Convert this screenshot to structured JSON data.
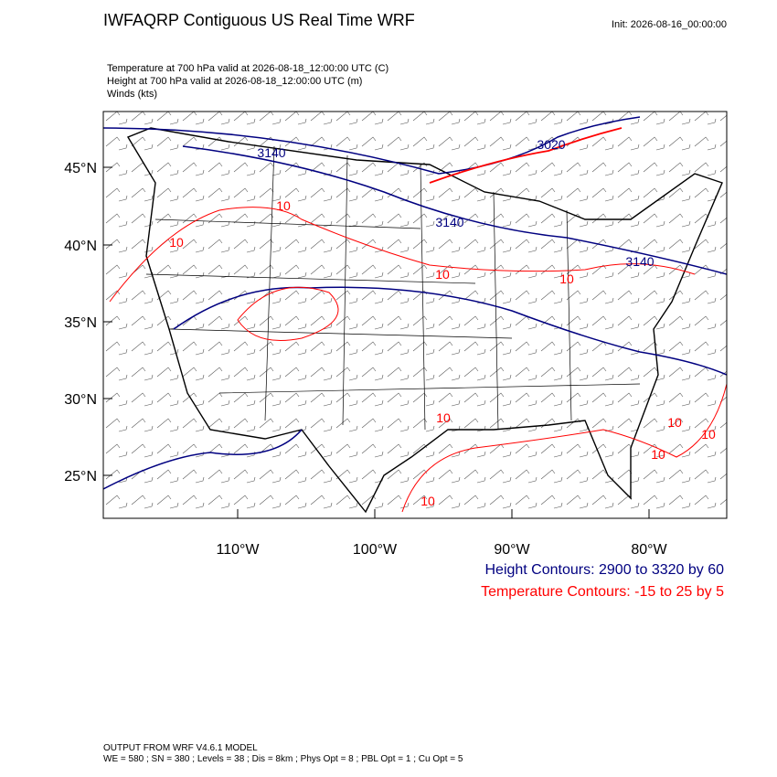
{
  "header": {
    "title": "IWFAQRP Contiguous US Real Time WRF",
    "init": "Init: 2026-08-16_00:00:00"
  },
  "fields": [
    "Temperature at 700 hPa valid at 2026-08-18_12:00:00 UTC   (C)",
    "Height at 700 hPa valid at 2026-08-18_12:00:00 UTC   (m)",
    "Winds   (kts)"
  ],
  "map": {
    "lat_labels": [
      "45°N",
      "40°N",
      "35°N",
      "30°N",
      "25°N"
    ],
    "lon_labels": [
      "110°W",
      "100°W",
      "90°W",
      "80°W"
    ],
    "height_labels": [
      "3140",
      "3140",
      "3140",
      "3020"
    ],
    "temp_labels": [
      "10",
      "10",
      "10",
      "10",
      "10",
      "10",
      "10",
      "10",
      "10"
    ]
  },
  "legend": {
    "height": "Height Contours: 2900 to 3320 by 60",
    "temperature": "Temperature Contours: -15 to 25 by 5"
  },
  "footer": [
    "OUTPUT FROM WRF V4.6.1 MODEL",
    "WE = 580 ; SN = 380 ; Levels = 38 ; Dis = 8km ; Phys Opt = 8 ; PBL Opt = 1 ; Cu Opt = 5"
  ]
}
